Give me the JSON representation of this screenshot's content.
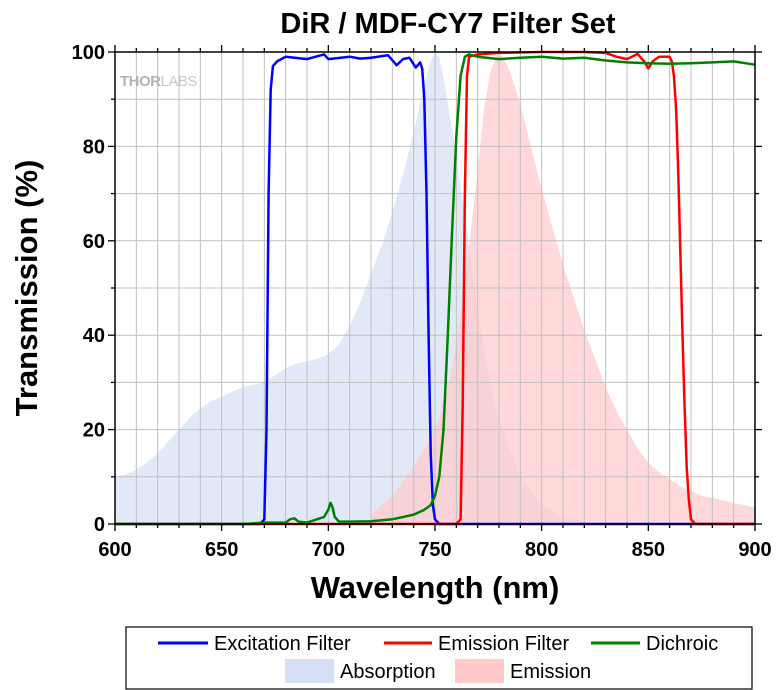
{
  "chart_data": {
    "type": "area",
    "title": "DiR / MDF-CY7 Filter Set",
    "xlabel": "Wavelength (nm)",
    "ylabel": "Transmission (%)",
    "xlim": [
      600,
      900
    ],
    "ylim": [
      0,
      100
    ],
    "x_ticks": [
      600,
      650,
      700,
      750,
      800,
      850,
      900
    ],
    "y_ticks": [
      0,
      20,
      40,
      60,
      80,
      100
    ],
    "x_minor_step": 10,
    "y_minor_step": 10,
    "grid": true,
    "legend_position": "bottom",
    "watermark": {
      "bold": "THOR",
      "light": "LABS"
    },
    "series": [
      {
        "name": "Excitation Filter",
        "kind": "line",
        "color": "#0000ff",
        "x": [
          600,
          668,
          670,
          671,
          672,
          673,
          674,
          676,
          680,
          690,
          698,
          700,
          710,
          715,
          720,
          728,
          732,
          735,
          738,
          741,
          743,
          744,
          745,
          746,
          747,
          748,
          749,
          750,
          752,
          760,
          900
        ],
        "y": [
          0,
          0,
          1,
          20,
          70,
          92,
          97,
          98,
          99,
          98.5,
          99.5,
          98.5,
          99,
          98.6,
          98.8,
          99.3,
          97.2,
          98.5,
          98.8,
          96.7,
          97.8,
          96.5,
          90,
          70,
          40,
          15,
          4,
          1,
          0,
          0,
          0
        ]
      },
      {
        "name": "Emission Filter",
        "kind": "line",
        "color": "#ff0000",
        "x": [
          600,
          760,
          762,
          763,
          764,
          765,
          766,
          770,
          780,
          800,
          820,
          830,
          835,
          840,
          845,
          848,
          850,
          852,
          855,
          860,
          861,
          862,
          863,
          864,
          865,
          866,
          867,
          868,
          869,
          870,
          872,
          900
        ],
        "y": [
          0,
          0,
          1,
          25,
          70,
          95,
          99,
          99.5,
          99.8,
          100,
          100,
          99.8,
          99,
          98.5,
          99.6,
          98,
          96.5,
          98,
          99,
          99,
          98,
          95,
          88,
          75,
          58,
          40,
          25,
          12,
          5,
          1,
          0,
          0
        ]
      },
      {
        "name": "Dichroic",
        "kind": "line",
        "color": "#008000",
        "x": [
          600,
          660,
          670,
          680,
          682,
          684,
          686,
          690,
          698,
          700,
          701,
          702,
          703,
          705,
          710,
          720,
          730,
          740,
          745,
          748,
          750,
          752,
          754,
          756,
          758,
          760,
          762,
          764,
          766,
          768,
          770,
          780,
          790,
          800,
          810,
          820,
          830,
          840,
          850,
          860,
          870,
          880,
          890,
          900
        ],
        "y": [
          0,
          0,
          0.3,
          0.3,
          1,
          1.2,
          0.5,
          0.3,
          1.5,
          3,
          4.5,
          3.5,
          1.5,
          0.5,
          0.5,
          0.6,
          1,
          2,
          3,
          4,
          6,
          10,
          20,
          40,
          62,
          82,
          95,
          99,
          99.5,
          99.2,
          99,
          98.5,
          98.8,
          99,
          98.6,
          98.8,
          98.2,
          97.8,
          97.6,
          97.5,
          97.6,
          97.8,
          98,
          97.3
        ]
      },
      {
        "name": "Absorption",
        "kind": "area",
        "color": "#d5e0f5",
        "x": [
          600,
          605,
          610,
          615,
          620,
          625,
          630,
          635,
          640,
          645,
          650,
          655,
          660,
          665,
          670,
          675,
          680,
          685,
          690,
          695,
          700,
          705,
          710,
          715,
          720,
          725,
          730,
          735,
          740,
          745,
          748,
          750,
          752,
          755,
          760,
          765,
          770,
          775,
          780,
          790,
          800,
          810,
          820,
          830
        ],
        "y": [
          10,
          10.5,
          11.5,
          13,
          15,
          17.5,
          20,
          22.5,
          24.5,
          26,
          27,
          28,
          29,
          29.5,
          30,
          31.5,
          33,
          34,
          34.5,
          35,
          36,
          38,
          42,
          47,
          53,
          59,
          66,
          74,
          83,
          93,
          98,
          100,
          99,
          92,
          78,
          62,
          45,
          32,
          22,
          10,
          4,
          1.5,
          0.5,
          0
        ]
      },
      {
        "name": "Emission",
        "kind": "area",
        "color": "#ffcaca",
        "x": [
          720,
          725,
          730,
          735,
          740,
          745,
          750,
          755,
          760,
          765,
          770,
          773,
          776,
          779,
          782,
          785,
          790,
          795,
          800,
          805,
          810,
          815,
          820,
          825,
          830,
          835,
          840,
          845,
          850,
          855,
          860,
          865,
          870,
          875,
          880,
          885,
          890,
          895,
          900
        ],
        "y": [
          2,
          4,
          6,
          9,
          12,
          16,
          20,
          27,
          38,
          55,
          75,
          88,
          96,
          99.5,
          99,
          96,
          89,
          80,
          71,
          63,
          55,
          48,
          41,
          35,
          29,
          24,
          20,
          16,
          13,
          11,
          9.5,
          8,
          7,
          6,
          5.5,
          5,
          4.5,
          4,
          3.5
        ]
      }
    ],
    "legend": {
      "row1": [
        "Excitation Filter",
        "Emission Filter",
        "Dichroic"
      ],
      "row2": [
        "Absorption",
        "Emission"
      ]
    }
  }
}
